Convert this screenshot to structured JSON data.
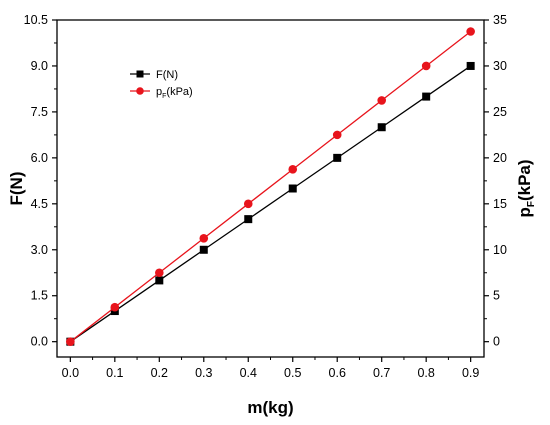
{
  "chart_data": {
    "type": "line",
    "x": [
      0.0,
      0.1,
      0.2,
      0.3,
      0.4,
      0.5,
      0.6,
      0.7,
      0.8,
      0.9
    ],
    "xlabel": "m(kg)",
    "xlim": [
      -0.03,
      0.93
    ],
    "x_ticks": [
      "0.0",
      "0.1",
      "0.2",
      "0.3",
      "0.4",
      "0.5",
      "0.6",
      "0.7",
      "0.8",
      "0.9"
    ],
    "ylabel_left": "F(N)",
    "ylim_left": [
      -0.5,
      10.5
    ],
    "y_ticks_left": [
      "0.0",
      "1.5",
      "3.0",
      "4.5",
      "6.0",
      "7.5",
      "9.0",
      "10.5"
    ],
    "ylabel_right_main": "p",
    "ylabel_right_sub": "F",
    "ylabel_right_tail": "(kPa)",
    "ylim_right": [
      -1.667,
      35
    ],
    "y_ticks_right": [
      "0",
      "5",
      "10",
      "15",
      "20",
      "25",
      "30",
      "35"
    ],
    "grid": false,
    "legend_position": "top-left",
    "series": [
      {
        "name": "F(N)",
        "legend_main": "F(N)",
        "axis": "left",
        "marker": "square",
        "color": "#000000",
        "values": [
          0.0,
          1.0,
          2.0,
          3.0,
          4.0,
          5.0,
          6.0,
          7.0,
          8.0,
          9.0
        ]
      },
      {
        "name": "pF(kPa)",
        "legend_main": "p",
        "legend_sub": "F",
        "legend_tail": "(kPa)",
        "axis": "right",
        "marker": "circle",
        "color": "#e8141c",
        "values": [
          0.0,
          3.75,
          7.5,
          11.25,
          15.0,
          18.75,
          22.5,
          26.25,
          30.0,
          33.75
        ]
      }
    ]
  }
}
